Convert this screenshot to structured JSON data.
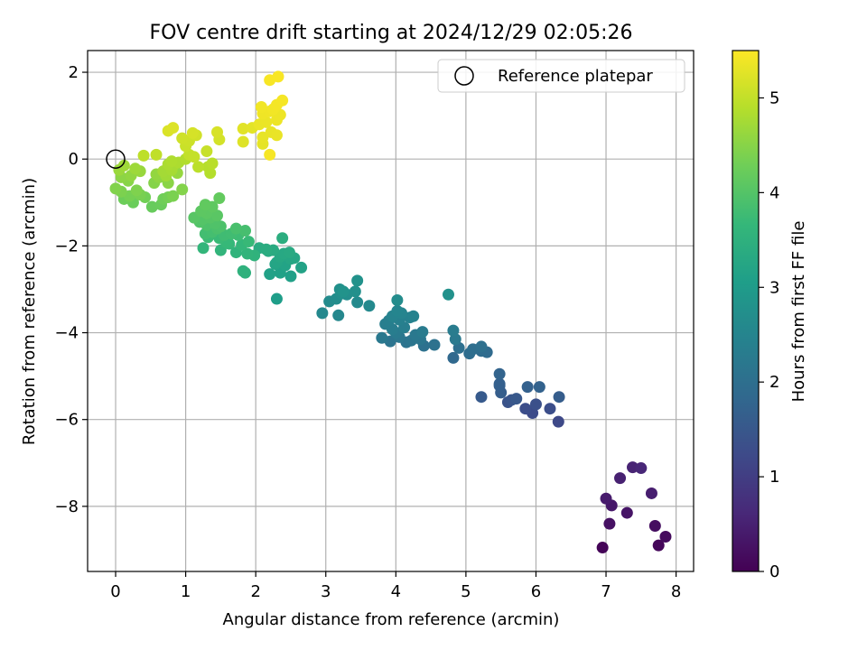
{
  "chart_data": {
    "type": "scatter",
    "title": "FOV centre drift starting at 2024/12/29 02:05:26",
    "xlabel": "Angular distance from reference (arcmin)",
    "ylabel": "Rotation from reference (arcmin)",
    "xlim": [
      -0.4,
      8.25
    ],
    "ylim": [
      -9.5,
      2.5
    ],
    "xticks": [
      "0",
      "1",
      "2",
      "3",
      "4",
      "5",
      "6",
      "7",
      "8"
    ],
    "yticks": [
      "2",
      "0",
      "−2",
      "−4",
      "−6",
      "−8"
    ],
    "grid": true,
    "legend": {
      "placement": "top-right",
      "entries": [
        "Reference platepar"
      ]
    },
    "reference_point": {
      "x": 0,
      "y": 0
    },
    "colorbar": {
      "label": "Hours from first FF file",
      "range": [
        0,
        5.5
      ],
      "ticks": [
        "0",
        "1",
        "2",
        "3",
        "4",
        "5"
      ],
      "colormap": "viridis"
    },
    "series": [
      {
        "points": [
          {
            "x": 6.95,
            "y": -8.95,
            "h": 0.05
          },
          {
            "x": 7.75,
            "y": -8.9,
            "h": 0.1
          },
          {
            "x": 7.85,
            "y": -8.7,
            "h": 0.15
          },
          {
            "x": 7.7,
            "y": -8.45,
            "h": 0.2
          },
          {
            "x": 7.05,
            "y": -8.4,
            "h": 0.25
          },
          {
            "x": 7.3,
            "y": -8.15,
            "h": 0.3
          },
          {
            "x": 7.08,
            "y": -7.98,
            "h": 0.35
          },
          {
            "x": 7.0,
            "y": -7.82,
            "h": 0.4
          },
          {
            "x": 7.65,
            "y": -7.7,
            "h": 0.45
          },
          {
            "x": 7.2,
            "y": -7.35,
            "h": 0.5
          },
          {
            "x": 7.38,
            "y": -7.1,
            "h": 0.55
          },
          {
            "x": 7.5,
            "y": -7.12,
            "h": 0.6
          },
          {
            "x": 6.32,
            "y": -6.05,
            "h": 1.2
          },
          {
            "x": 5.95,
            "y": -5.85,
            "h": 1.25
          },
          {
            "x": 5.85,
            "y": -5.75,
            "h": 1.3
          },
          {
            "x": 6.2,
            "y": -5.75,
            "h": 1.3
          },
          {
            "x": 6.0,
            "y": -5.65,
            "h": 1.35
          },
          {
            "x": 5.6,
            "y": -5.6,
            "h": 1.4
          },
          {
            "x": 5.65,
            "y": -5.55,
            "h": 1.45
          },
          {
            "x": 5.72,
            "y": -5.52,
            "h": 1.5
          },
          {
            "x": 5.22,
            "y": -5.48,
            "h": 1.55
          },
          {
            "x": 6.33,
            "y": -5.48,
            "h": 1.6
          },
          {
            "x": 5.5,
            "y": -5.38,
            "h": 1.62
          },
          {
            "x": 5.48,
            "y": -5.22,
            "h": 1.65
          },
          {
            "x": 5.48,
            "y": -5.18,
            "h": 1.68
          },
          {
            "x": 5.88,
            "y": -5.25,
            "h": 1.7
          },
          {
            "x": 6.05,
            "y": -5.25,
            "h": 1.72
          },
          {
            "x": 5.48,
            "y": -4.95,
            "h": 1.75
          },
          {
            "x": 4.82,
            "y": -4.58,
            "h": 1.85
          },
          {
            "x": 5.3,
            "y": -4.45,
            "h": 1.9
          },
          {
            "x": 5.22,
            "y": -4.42,
            "h": 1.92
          },
          {
            "x": 5.05,
            "y": -4.48,
            "h": 1.95
          },
          {
            "x": 5.1,
            "y": -4.38,
            "h": 1.98
          },
          {
            "x": 4.9,
            "y": -4.35,
            "h": 2.0
          },
          {
            "x": 5.22,
            "y": -4.32,
            "h": 2.02
          },
          {
            "x": 4.4,
            "y": -4.3,
            "h": 2.05
          },
          {
            "x": 4.55,
            "y": -4.28,
            "h": 2.08
          },
          {
            "x": 4.15,
            "y": -4.22,
            "h": 2.1
          },
          {
            "x": 3.92,
            "y": -4.2,
            "h": 2.12
          },
          {
            "x": 4.22,
            "y": -4.18,
            "h": 2.14
          },
          {
            "x": 4.35,
            "y": -4.15,
            "h": 2.16
          },
          {
            "x": 4.05,
            "y": -4.1,
            "h": 2.18
          },
          {
            "x": 3.8,
            "y": -4.12,
            "h": 2.2
          },
          {
            "x": 4.28,
            "y": -4.05,
            "h": 2.22
          },
          {
            "x": 4.85,
            "y": -4.15,
            "h": 2.24
          },
          {
            "x": 4.0,
            "y": -4.0,
            "h": 2.26
          },
          {
            "x": 4.38,
            "y": -3.98,
            "h": 2.28
          },
          {
            "x": 4.82,
            "y": -3.95,
            "h": 2.3
          },
          {
            "x": 3.95,
            "y": -3.92,
            "h": 2.32
          },
          {
            "x": 4.12,
            "y": -3.88,
            "h": 2.34
          },
          {
            "x": 3.85,
            "y": -3.8,
            "h": 2.36
          },
          {
            "x": 3.9,
            "y": -3.72,
            "h": 2.38
          },
          {
            "x": 4.05,
            "y": -3.7,
            "h": 2.4
          },
          {
            "x": 4.2,
            "y": -3.65,
            "h": 2.42
          },
          {
            "x": 4.25,
            "y": -3.62,
            "h": 2.44
          },
          {
            "x": 3.95,
            "y": -3.62,
            "h": 2.46
          },
          {
            "x": 4.08,
            "y": -3.55,
            "h": 2.48
          },
          {
            "x": 4.02,
            "y": -3.5,
            "h": 2.5
          },
          {
            "x": 3.18,
            "y": -3.6,
            "h": 2.55
          },
          {
            "x": 2.95,
            "y": -3.55,
            "h": 2.58
          },
          {
            "x": 3.62,
            "y": -3.38,
            "h": 2.6
          },
          {
            "x": 3.45,
            "y": -3.3,
            "h": 2.62
          },
          {
            "x": 3.05,
            "y": -3.28,
            "h": 2.64
          },
          {
            "x": 4.02,
            "y": -3.25,
            "h": 2.66
          },
          {
            "x": 3.15,
            "y": -3.22,
            "h": 2.68
          },
          {
            "x": 3.3,
            "y": -3.12,
            "h": 2.7
          },
          {
            "x": 3.22,
            "y": -3.1,
            "h": 2.72
          },
          {
            "x": 3.42,
            "y": -3.05,
            "h": 2.74
          },
          {
            "x": 3.2,
            "y": -3.0,
            "h": 2.76
          },
          {
            "x": 4.75,
            "y": -3.12,
            "h": 2.78
          },
          {
            "x": 3.45,
            "y": -2.8,
            "h": 2.8
          },
          {
            "x": 3.25,
            "y": -3.05,
            "h": 2.82
          },
          {
            "x": 2.3,
            "y": -3.22,
            "h": 3.05
          },
          {
            "x": 2.5,
            "y": -2.7,
            "h": 3.1
          },
          {
            "x": 2.35,
            "y": -2.62,
            "h": 3.12
          },
          {
            "x": 2.2,
            "y": -2.65,
            "h": 3.14
          },
          {
            "x": 2.65,
            "y": -2.5,
            "h": 3.16
          },
          {
            "x": 2.42,
            "y": -2.45,
            "h": 3.18
          },
          {
            "x": 2.28,
            "y": -2.42,
            "h": 3.2
          },
          {
            "x": 2.3,
            "y": -2.38,
            "h": 3.22
          },
          {
            "x": 2.5,
            "y": -2.3,
            "h": 3.24
          },
          {
            "x": 2.55,
            "y": -2.28,
            "h": 3.26
          },
          {
            "x": 2.35,
            "y": -2.25,
            "h": 3.28
          },
          {
            "x": 2.4,
            "y": -2.18,
            "h": 3.3
          },
          {
            "x": 2.48,
            "y": -2.15,
            "h": 3.32
          },
          {
            "x": 2.18,
            "y": -2.12,
            "h": 3.34
          },
          {
            "x": 2.25,
            "y": -2.1,
            "h": 3.36
          },
          {
            "x": 2.05,
            "y": -2.05,
            "h": 3.38
          },
          {
            "x": 2.15,
            "y": -2.08,
            "h": 3.4
          },
          {
            "x": 2.38,
            "y": -1.82,
            "h": 3.42
          },
          {
            "x": 1.85,
            "y": -2.62,
            "h": 3.5
          },
          {
            "x": 1.82,
            "y": -2.58,
            "h": 3.52
          },
          {
            "x": 1.98,
            "y": -2.22,
            "h": 3.54
          },
          {
            "x": 1.72,
            "y": -2.15,
            "h": 3.56
          },
          {
            "x": 1.88,
            "y": -2.18,
            "h": 3.58
          },
          {
            "x": 1.5,
            "y": -2.1,
            "h": 3.6
          },
          {
            "x": 1.25,
            "y": -2.05,
            "h": 3.62
          },
          {
            "x": 1.8,
            "y": -1.98,
            "h": 3.64
          },
          {
            "x": 1.62,
            "y": -1.95,
            "h": 3.66
          },
          {
            "x": 1.58,
            "y": -1.92,
            "h": 3.68
          },
          {
            "x": 1.9,
            "y": -1.9,
            "h": 3.7
          },
          {
            "x": 1.48,
            "y": -1.82,
            "h": 3.72
          },
          {
            "x": 1.32,
            "y": -1.8,
            "h": 3.74
          },
          {
            "x": 1.75,
            "y": -1.75,
            "h": 3.76
          },
          {
            "x": 1.55,
            "y": -1.75,
            "h": 3.78
          },
          {
            "x": 1.65,
            "y": -1.72,
            "h": 3.8
          },
          {
            "x": 1.28,
            "y": -1.72,
            "h": 3.82
          },
          {
            "x": 1.38,
            "y": -1.68,
            "h": 3.84
          },
          {
            "x": 1.85,
            "y": -1.65,
            "h": 3.86
          },
          {
            "x": 1.72,
            "y": -1.6,
            "h": 3.88
          },
          {
            "x": 1.45,
            "y": -1.6,
            "h": 3.9
          },
          {
            "x": 1.5,
            "y": -1.55,
            "h": 3.92
          },
          {
            "x": 1.3,
            "y": -1.52,
            "h": 3.94
          },
          {
            "x": 1.42,
            "y": -1.48,
            "h": 3.96
          },
          {
            "x": 1.2,
            "y": -1.45,
            "h": 3.98
          },
          {
            "x": 1.25,
            "y": -1.38,
            "h": 4.0
          },
          {
            "x": 1.35,
            "y": -1.35,
            "h": 4.02
          },
          {
            "x": 1.12,
            "y": -1.35,
            "h": 4.04
          },
          {
            "x": 1.45,
            "y": -1.3,
            "h": 4.06
          },
          {
            "x": 1.3,
            "y": -1.25,
            "h": 4.08
          },
          {
            "x": 1.22,
            "y": -1.2,
            "h": 4.1
          },
          {
            "x": 1.38,
            "y": -1.1,
            "h": 4.12
          },
          {
            "x": 1.28,
            "y": -1.05,
            "h": 4.14
          },
          {
            "x": 1.48,
            "y": -0.9,
            "h": 4.16
          },
          {
            "x": 0.52,
            "y": -1.1,
            "h": 4.2
          },
          {
            "x": 0.65,
            "y": -1.05,
            "h": 4.22
          },
          {
            "x": 0.25,
            "y": -1.0,
            "h": 4.24
          },
          {
            "x": 0.12,
            "y": -0.92,
            "h": 4.26
          },
          {
            "x": 0.68,
            "y": -0.92,
            "h": 4.28
          },
          {
            "x": 0.42,
            "y": -0.88,
            "h": 4.3
          },
          {
            "x": 0.75,
            "y": -0.88,
            "h": 4.32
          },
          {
            "x": 0.2,
            "y": -0.85,
            "h": 4.34
          },
          {
            "x": 0.35,
            "y": -0.82,
            "h": 4.36
          },
          {
            "x": 0.82,
            "y": -0.85,
            "h": 4.38
          },
          {
            "x": 0.08,
            "y": -0.75,
            "h": 4.4
          },
          {
            "x": 0.3,
            "y": -0.72,
            "h": 4.42
          },
          {
            "x": 0.0,
            "y": -0.68,
            "h": 4.44
          },
          {
            "x": 0.95,
            "y": -0.7,
            "h": 4.46
          },
          {
            "x": 0.55,
            "y": -0.55,
            "h": 4.48
          },
          {
            "x": 0.18,
            "y": -0.5,
            "h": 4.5
          },
          {
            "x": 0.75,
            "y": -0.55,
            "h": 4.52
          },
          {
            "x": 0.08,
            "y": -0.42,
            "h": 4.54
          },
          {
            "x": 0.62,
            "y": -0.42,
            "h": 4.56
          },
          {
            "x": 0.22,
            "y": -0.38,
            "h": 4.58
          },
          {
            "x": 0.58,
            "y": -0.35,
            "h": 4.6
          },
          {
            "x": 0.88,
            "y": -0.32,
            "h": 4.62
          },
          {
            "x": 0.35,
            "y": -0.28,
            "h": 4.64
          },
          {
            "x": 0.05,
            "y": -0.25,
            "h": 4.66
          },
          {
            "x": 0.28,
            "y": -0.22,
            "h": 4.68
          },
          {
            "x": 0.12,
            "y": -0.15,
            "h": 4.7
          },
          {
            "x": 0.72,
            "y": -0.38,
            "h": 4.72
          },
          {
            "x": 0.68,
            "y": -0.28,
            "h": 4.74
          },
          {
            "x": 0.8,
            "y": -0.25,
            "h": 4.76
          },
          {
            "x": 0.82,
            "y": -0.15,
            "h": 4.78
          },
          {
            "x": 0.75,
            "y": -0.12,
            "h": 4.8
          },
          {
            "x": 0.9,
            "y": -0.08,
            "h": 4.82
          },
          {
            "x": 0.8,
            "y": -0.05,
            "h": 4.84
          },
          {
            "x": 1.0,
            "y": 0.0,
            "h": 4.86
          },
          {
            "x": 1.35,
            "y": -0.32,
            "h": 4.88
          },
          {
            "x": 1.32,
            "y": -0.18,
            "h": 4.9
          },
          {
            "x": 1.38,
            "y": -0.1,
            "h": 4.92
          },
          {
            "x": 1.18,
            "y": -0.18,
            "h": 4.94
          },
          {
            "x": 0.4,
            "y": 0.08,
            "h": 4.96
          },
          {
            "x": 0.58,
            "y": 0.1,
            "h": 4.98
          },
          {
            "x": 1.05,
            "y": 0.1,
            "h": 5.0
          },
          {
            "x": 1.12,
            "y": 0.05,
            "h": 5.02
          },
          {
            "x": 1.3,
            "y": 0.18,
            "h": 5.04
          },
          {
            "x": 1.0,
            "y": 0.3,
            "h": 5.06
          },
          {
            "x": 1.05,
            "y": 0.42,
            "h": 5.08
          },
          {
            "x": 0.95,
            "y": 0.48,
            "h": 5.1
          },
          {
            "x": 1.15,
            "y": 0.55,
            "h": 5.12
          },
          {
            "x": 1.48,
            "y": 0.45,
            "h": 5.14
          },
          {
            "x": 1.1,
            "y": 0.6,
            "h": 5.16
          },
          {
            "x": 1.45,
            "y": 0.62,
            "h": 5.18
          },
          {
            "x": 0.75,
            "y": 0.65,
            "h": 5.2
          },
          {
            "x": 0.82,
            "y": 0.72,
            "h": 5.22
          },
          {
            "x": 1.82,
            "y": 0.4,
            "h": 5.24
          },
          {
            "x": 1.82,
            "y": 0.7,
            "h": 5.26
          },
          {
            "x": 1.95,
            "y": 0.72,
            "h": 5.28
          },
          {
            "x": 2.1,
            "y": 0.35,
            "h": 5.3
          },
          {
            "x": 2.1,
            "y": 0.5,
            "h": 5.31
          },
          {
            "x": 2.22,
            "y": 0.62,
            "h": 5.32
          },
          {
            "x": 2.3,
            "y": 0.55,
            "h": 5.33
          },
          {
            "x": 2.05,
            "y": 0.8,
            "h": 5.34
          },
          {
            "x": 2.15,
            "y": 0.85,
            "h": 5.35
          },
          {
            "x": 2.3,
            "y": 0.9,
            "h": 5.36
          },
          {
            "x": 2.35,
            "y": 1.02,
            "h": 5.37
          },
          {
            "x": 2.1,
            "y": 1.05,
            "h": 5.38
          },
          {
            "x": 2.2,
            "y": 1.1,
            "h": 5.39
          },
          {
            "x": 2.08,
            "y": 1.2,
            "h": 5.4
          },
          {
            "x": 2.25,
            "y": 1.15,
            "h": 5.41
          },
          {
            "x": 2.3,
            "y": 1.25,
            "h": 5.42
          },
          {
            "x": 2.38,
            "y": 1.35,
            "h": 5.43
          },
          {
            "x": 2.2,
            "y": 0.1,
            "h": 5.44
          },
          {
            "x": 2.2,
            "y": 1.82,
            "h": 5.45
          },
          {
            "x": 2.32,
            "y": 1.9,
            "h": 5.46
          }
        ]
      }
    ]
  }
}
